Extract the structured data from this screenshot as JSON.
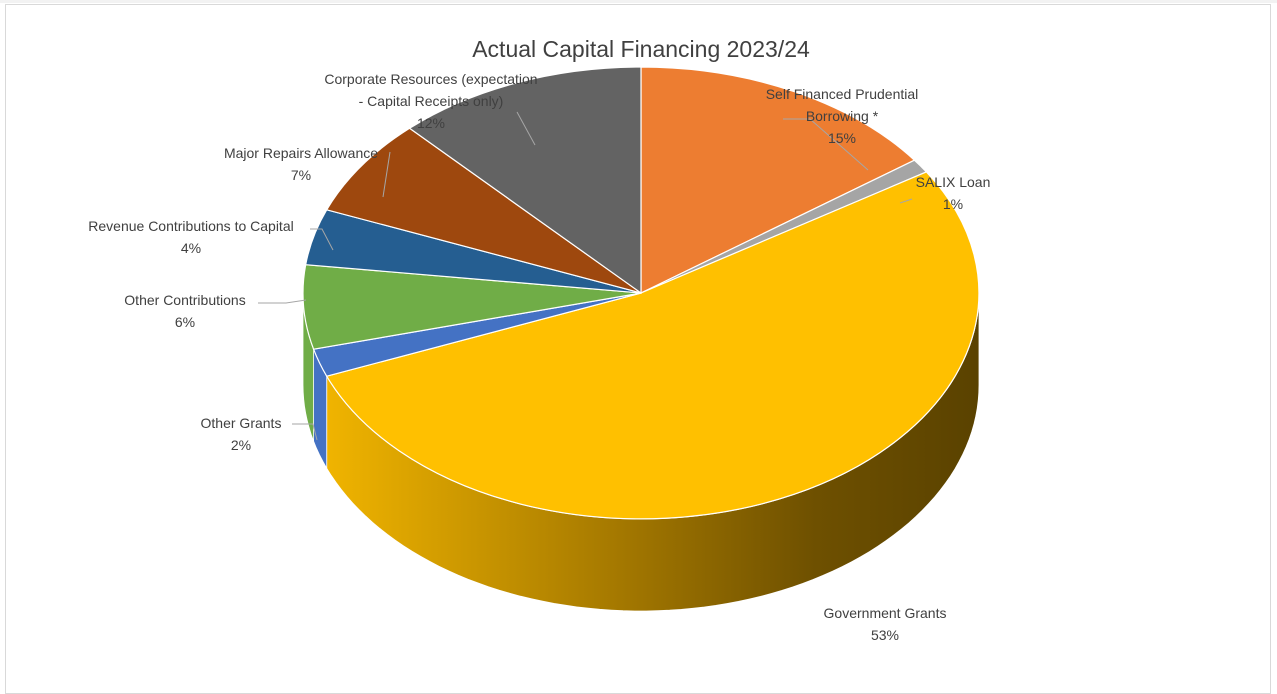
{
  "chart_data": {
    "type": "pie",
    "title": "Actual Capital Financing 2023/24",
    "slices": [
      {
        "label": [
          "Self Financed Prudential",
          "Borrowing *"
        ],
        "percent": "15%",
        "value": 15,
        "color": "#ED7D31"
      },
      {
        "label": [
          "SALIX Loan"
        ],
        "percent": "1%",
        "value": 1,
        "color": "#A5A5A5"
      },
      {
        "label": [
          "Government Grants"
        ],
        "percent": "53%",
        "value": 53,
        "color": "#FFC000"
      },
      {
        "label": [
          "Other Grants"
        ],
        "percent": "2%",
        "value": 2,
        "color": "#4472C4"
      },
      {
        "label": [
          "Other Contributions"
        ],
        "percent": "6%",
        "value": 6,
        "color": "#70AD47"
      },
      {
        "label": [
          "Revenue Contributions to Capital"
        ],
        "percent": "4%",
        "value": 4,
        "color": "#255E91"
      },
      {
        "label": [
          "Major Repairs Allowance"
        ],
        "percent": "7%",
        "value": 7,
        "color": "#9E480E"
      },
      {
        "label": [
          "Corporate Resources (expectation",
          "- Capital Receipts only)"
        ],
        "percent": "12%",
        "value": 12,
        "color": "#636363"
      }
    ]
  }
}
